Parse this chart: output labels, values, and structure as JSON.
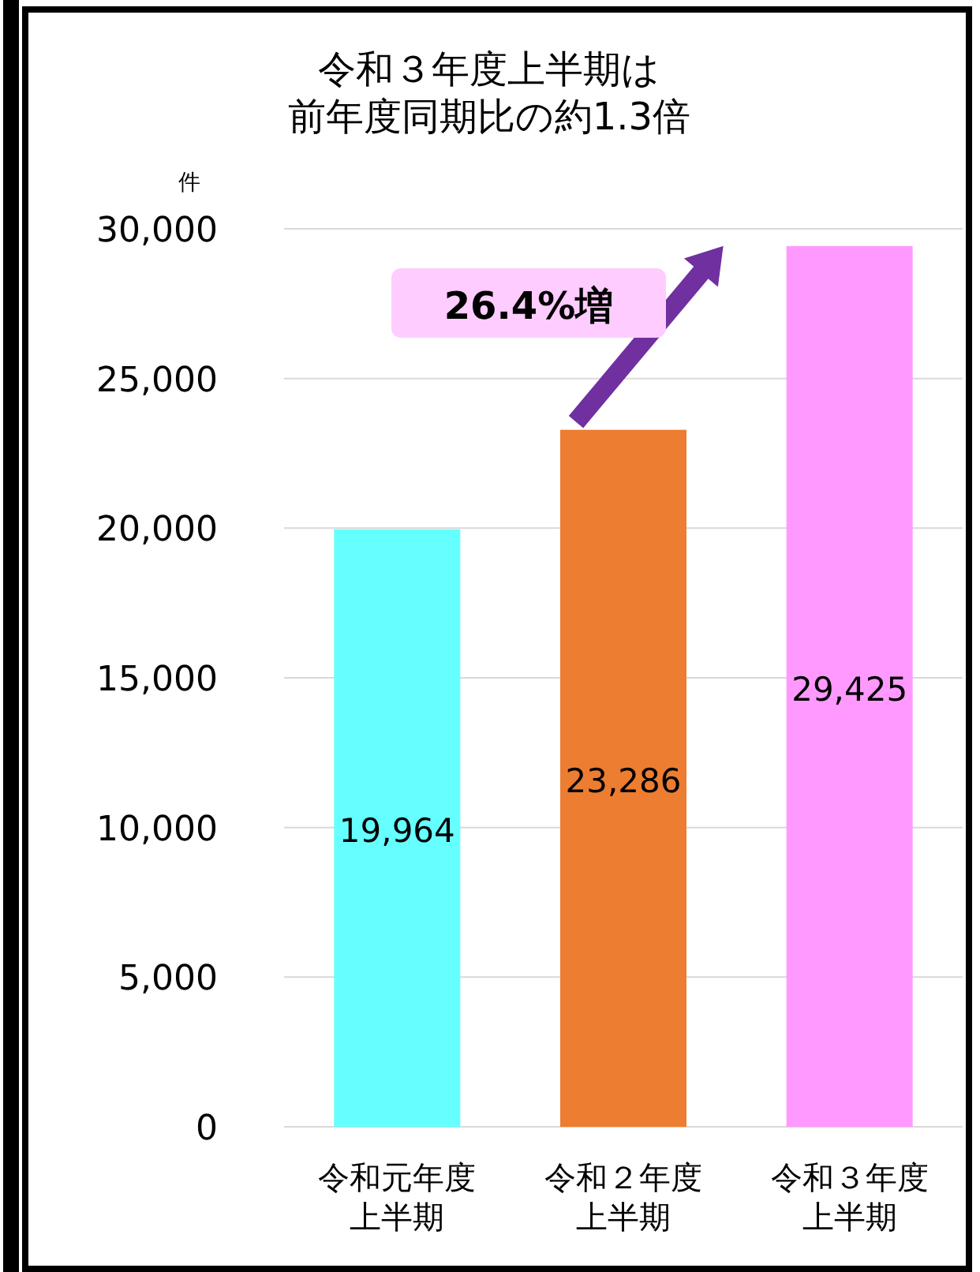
{
  "chart_data": {
    "type": "bar",
    "title": "令和３年度上半期は前年度同期比の約1.3倍",
    "ylabel": "件",
    "categories": [
      "令和元年度上半期",
      "令和２年度上半期",
      "令和３年度上半期"
    ],
    "values": [
      19964,
      23286,
      29425
    ],
    "colors": [
      "#66ffff",
      "#ed7d31",
      "#ff99ff"
    ],
    "value_labels": [
      "19,964",
      "23,286",
      "29,425"
    ],
    "ylim": [
      0,
      30000
    ],
    "yticks": [
      {
        "value": 0,
        "label": "0"
      },
      {
        "value": 5000,
        "label": "5,000"
      },
      {
        "value": 10000,
        "label": "10,000"
      },
      {
        "value": 15000,
        "label": "15,000"
      },
      {
        "value": 20000,
        "label": "20,000"
      },
      {
        "value": 25000,
        "label": "25,000"
      },
      {
        "value": 30000,
        "label": "30,000"
      }
    ],
    "grid": "y",
    "annotations": [
      "26.4%増"
    ]
  }
}
